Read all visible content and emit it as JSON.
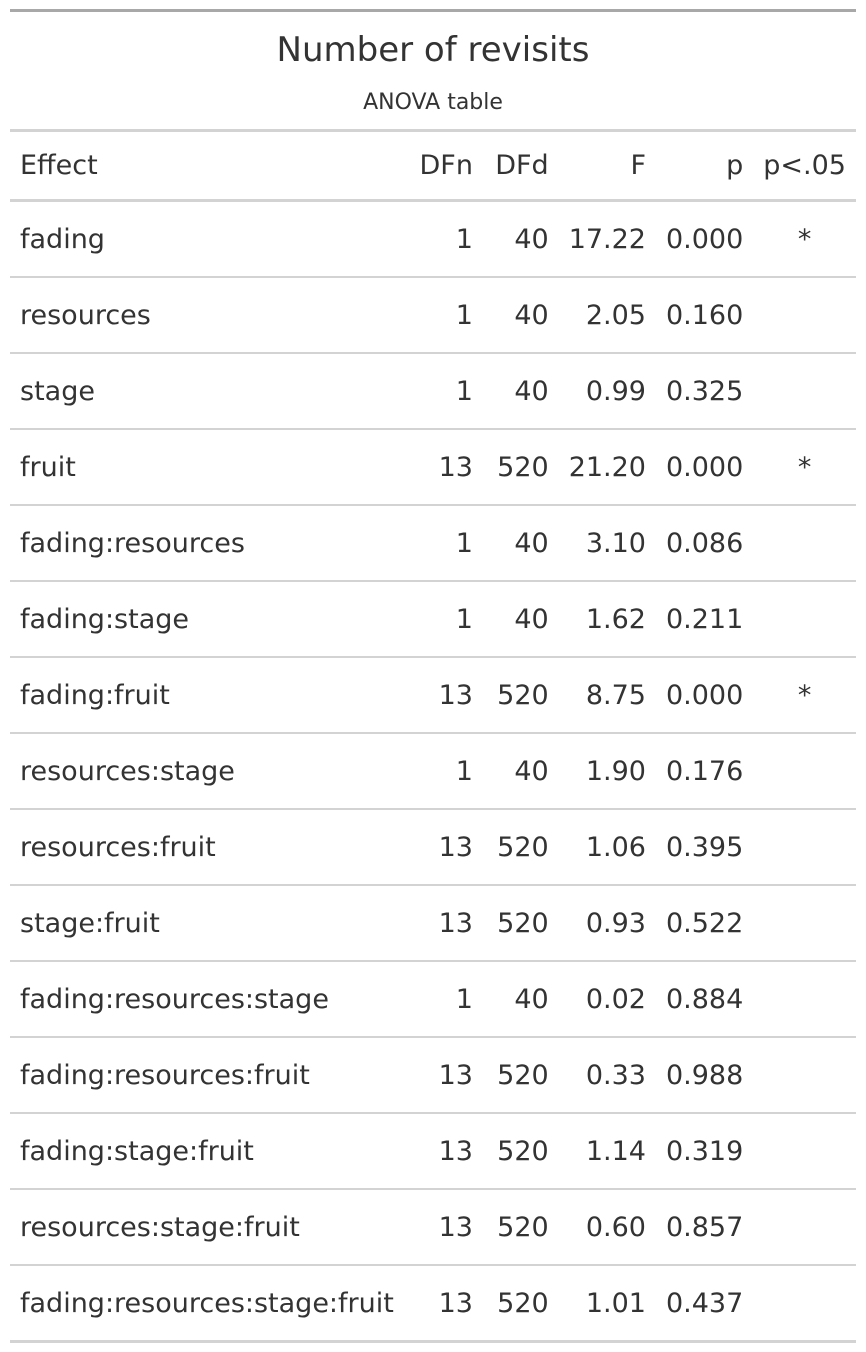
{
  "title": "Number of revisits",
  "subtitle": "ANOVA table",
  "columns": {
    "effect": "Effect",
    "dfn": "DFn",
    "dfd": "DFd",
    "f": "F",
    "p": "p",
    "sig": "p<.05"
  },
  "rows": [
    {
      "effect": "fading",
      "dfn": "1",
      "dfd": "40",
      "f": "17.22",
      "p": "0.000",
      "sig": "*"
    },
    {
      "effect": "resources",
      "dfn": "1",
      "dfd": "40",
      "f": "2.05",
      "p": "0.160",
      "sig": ""
    },
    {
      "effect": "stage",
      "dfn": "1",
      "dfd": "40",
      "f": "0.99",
      "p": "0.325",
      "sig": ""
    },
    {
      "effect": "fruit",
      "dfn": "13",
      "dfd": "520",
      "f": "21.20",
      "p": "0.000",
      "sig": "*"
    },
    {
      "effect": "fading:resources",
      "dfn": "1",
      "dfd": "40",
      "f": "3.10",
      "p": "0.086",
      "sig": ""
    },
    {
      "effect": "fading:stage",
      "dfn": "1",
      "dfd": "40",
      "f": "1.62",
      "p": "0.211",
      "sig": ""
    },
    {
      "effect": "fading:fruit",
      "dfn": "13",
      "dfd": "520",
      "f": "8.75",
      "p": "0.000",
      "sig": "*"
    },
    {
      "effect": "resources:stage",
      "dfn": "1",
      "dfd": "40",
      "f": "1.90",
      "p": "0.176",
      "sig": ""
    },
    {
      "effect": "resources:fruit",
      "dfn": "13",
      "dfd": "520",
      "f": "1.06",
      "p": "0.395",
      "sig": ""
    },
    {
      "effect": "stage:fruit",
      "dfn": "13",
      "dfd": "520",
      "f": "0.93",
      "p": "0.522",
      "sig": ""
    },
    {
      "effect": "fading:resources:stage",
      "dfn": "1",
      "dfd": "40",
      "f": "0.02",
      "p": "0.884",
      "sig": ""
    },
    {
      "effect": "fading:resources:fruit",
      "dfn": "13",
      "dfd": "520",
      "f": "0.33",
      "p": "0.988",
      "sig": ""
    },
    {
      "effect": "fading:stage:fruit",
      "dfn": "13",
      "dfd": "520",
      "f": "1.14",
      "p": "0.319",
      "sig": ""
    },
    {
      "effect": "resources:stage:fruit",
      "dfn": "13",
      "dfd": "520",
      "f": "0.60",
      "p": "0.857",
      "sig": ""
    },
    {
      "effect": "fading:resources:stage:fruit",
      "dfn": "13",
      "dfd": "520",
      "f": "1.01",
      "p": "0.437",
      "sig": ""
    }
  ],
  "colors": {
    "text": "#333333",
    "top_rule": "#a8a8a8",
    "rule": "#d3d3d3"
  }
}
